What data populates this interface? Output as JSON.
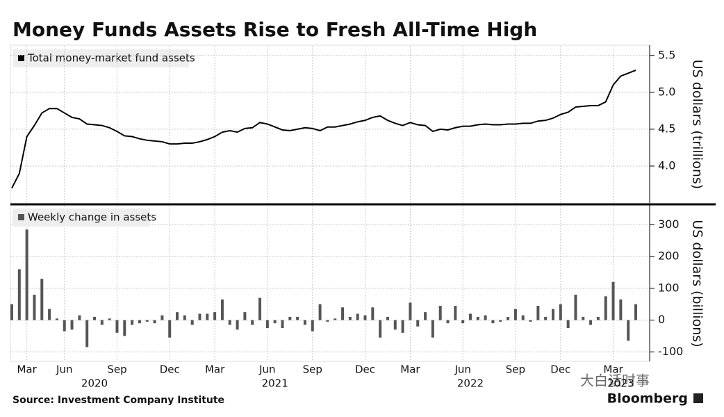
{
  "title": "Money Funds Assets Rise to Fresh All-Time High",
  "source": "Source: Investment Company Institute",
  "brand": "Bloomberg",
  "watermark": "大白话时事",
  "chart_data": [
    {
      "type": "line",
      "legend": "Total money-market fund assets",
      "y_label": "US dollars (trillions)",
      "color": "#000000",
      "ylim": [
        3.5,
        5.63
      ],
      "yticks": [
        {
          "value": 4,
          "label": "4.0"
        },
        4.5,
        {
          "value": 5,
          "label": "5.0"
        },
        5.5
      ],
      "grid": true,
      "values": [
        3.7,
        3.9,
        4.4,
        4.55,
        4.72,
        4.78,
        4.78,
        4.72,
        4.66,
        4.64,
        4.57,
        4.56,
        4.55,
        4.52,
        4.47,
        4.41,
        4.4,
        4.37,
        4.35,
        4.34,
        4.33,
        4.3,
        4.3,
        4.31,
        4.31,
        4.33,
        4.36,
        4.4,
        4.46,
        4.48,
        4.46,
        4.51,
        4.52,
        4.59,
        4.57,
        4.53,
        4.49,
        4.48,
        4.5,
        4.52,
        4.51,
        4.48,
        4.53,
        4.53,
        4.55,
        4.57,
        4.6,
        4.62,
        4.66,
        4.68,
        4.62,
        4.58,
        4.55,
        4.59,
        4.56,
        4.55,
        4.47,
        4.5,
        4.49,
        4.52,
        4.54,
        4.54,
        4.56,
        4.57,
        4.56,
        4.56,
        4.57,
        4.57,
        4.58,
        4.58,
        4.61,
        4.62,
        4.65,
        4.7,
        4.73,
        4.8,
        4.81,
        4.82,
        4.82,
        4.87,
        5.1,
        5.22,
        5.26,
        5.3
      ]
    },
    {
      "type": "bar",
      "legend": "Weekly change in assets",
      "y_label": "US dollars (billions)",
      "color": "#555555",
      "ylim": [
        -130,
        360
      ],
      "yticks": [
        -100,
        0,
        100,
        200,
        300
      ],
      "grid": true,
      "categories": [
        null,
        null,
        "Mar",
        null,
        null,
        null,
        null,
        "Jun",
        null,
        null,
        null,
        null,
        null,
        null,
        "Sep",
        null,
        null,
        null,
        null,
        null,
        null,
        "Dec",
        null,
        null,
        null,
        null,
        null,
        "Mar",
        null,
        null,
        null,
        null,
        null,
        null,
        "Jun",
        null,
        null,
        null,
        null,
        null,
        "Sep",
        null,
        null,
        null,
        null,
        null,
        null,
        "Dec",
        null,
        null,
        null,
        null,
        null,
        "Mar",
        null,
        null,
        null,
        null,
        null,
        null,
        "Jun",
        null,
        null,
        null,
        null,
        null,
        null,
        "Sep",
        null,
        null,
        null,
        null,
        null,
        "Dec",
        null,
        null,
        null,
        null,
        null,
        null,
        "Mar",
        null,
        null,
        null
      ],
      "years": [
        null,
        null,
        null,
        null,
        null,
        null,
        null,
        null,
        null,
        null,
        null,
        "2020",
        null,
        null,
        null,
        null,
        null,
        null,
        null,
        null,
        null,
        null,
        null,
        null,
        null,
        null,
        null,
        null,
        null,
        null,
        null,
        null,
        null,
        null,
        null,
        "2021",
        null,
        null,
        null,
        null,
        null,
        null,
        null,
        null,
        null,
        null,
        null,
        null,
        null,
        null,
        null,
        null,
        null,
        null,
        null,
        null,
        null,
        null,
        null,
        null,
        null,
        "2022",
        null,
        null,
        null,
        null,
        null,
        null,
        null,
        null,
        null,
        null,
        null,
        null,
        null,
        null,
        null,
        null,
        null,
        null,
        null,
        "2023",
        null,
        null
      ],
      "values": [
        50,
        160,
        285,
        80,
        130,
        35,
        5,
        -35,
        -30,
        15,
        -85,
        10,
        -15,
        5,
        -40,
        -50,
        -15,
        -10,
        -5,
        -10,
        15,
        -55,
        25,
        15,
        -15,
        20,
        20,
        25,
        65,
        -15,
        -30,
        25,
        -15,
        70,
        -25,
        -10,
        -25,
        10,
        10,
        -15,
        -35,
        50,
        -5,
        5,
        40,
        10,
        20,
        15,
        40,
        -55,
        10,
        -30,
        -40,
        55,
        -20,
        25,
        -55,
        45,
        -10,
        45,
        -10,
        20,
        10,
        15,
        -10,
        -5,
        10,
        35,
        15,
        -5,
        45,
        10,
        35,
        50,
        -25,
        80,
        10,
        -15,
        10,
        75,
        120,
        65,
        -65,
        50
      ]
    }
  ]
}
